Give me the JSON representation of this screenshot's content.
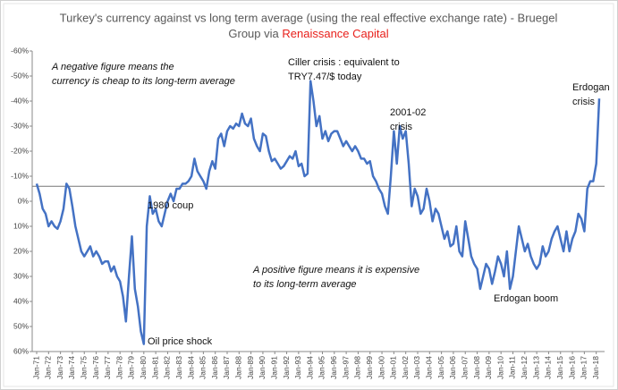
{
  "chart_data": {
    "type": "line",
    "title_lines": [
      "Turkey's currency against vs long term average (using the real effective exchange rate) - Bruegel",
      "Group via"
    ],
    "title_source": "Renaissance Capital",
    "title_source_color": "#e8201b",
    "categories": [
      "Jan-71",
      null,
      null,
      null,
      "Jan-72",
      null,
      null,
      null,
      "Jan-73",
      null,
      null,
      null,
      "Jan-74",
      null,
      null,
      null,
      "Jan-75",
      null,
      null,
      null,
      "Jan-76",
      null,
      null,
      null,
      "Jan-77",
      null,
      null,
      null,
      "Jan-78",
      null,
      null,
      null,
      "Jan-79",
      null,
      null,
      null,
      "Jan-80",
      null,
      null,
      null,
      "Jan-81",
      null,
      null,
      null,
      "Jan-82",
      null,
      null,
      null,
      "Jan-83",
      null,
      null,
      null,
      "Jan-84",
      null,
      null,
      null,
      "Jan-85",
      null,
      null,
      null,
      "Jan-86",
      null,
      null,
      null,
      "Jan-87",
      null,
      null,
      null,
      "Jan-88",
      null,
      null,
      null,
      "Jan-89",
      null,
      null,
      null,
      "Jan-90",
      null,
      null,
      null,
      "Jan-91",
      null,
      null,
      null,
      "Jan-92",
      null,
      null,
      null,
      "Jan-93",
      null,
      null,
      null,
      "Jan-94",
      null,
      null,
      null,
      "Jan-95",
      null,
      null,
      null,
      "Jan-96",
      null,
      null,
      null,
      "Jan-97",
      null,
      null,
      null,
      "Jan-98",
      null,
      null,
      null,
      "Jan-99",
      null,
      null,
      null,
      "Jan-00",
      null,
      null,
      null,
      "Jan-01",
      null,
      null,
      null,
      "Jan-02",
      null,
      null,
      null,
      "Jan-03",
      null,
      null,
      null,
      "Jan-04",
      null,
      null,
      null,
      "Jan-05",
      null,
      null,
      null,
      "Jan-06",
      null,
      null,
      null,
      "Jan-07",
      null,
      null,
      null,
      "Jan-08",
      null,
      null,
      null,
      "Jan-09",
      null,
      null,
      null,
      "Jan-10",
      null,
      null,
      null,
      "Jan-11",
      null,
      null,
      null,
      "Jan-12",
      null,
      null,
      null,
      "Jan-13",
      null,
      null,
      null,
      "Jan-14",
      null,
      null,
      null,
      "Jan-15",
      null,
      null,
      null,
      "Jan-16",
      null,
      null,
      null,
      "Jan-17",
      null,
      null,
      null,
      "Jan-18",
      null
    ],
    "series": [
      {
        "color": "#4472c4",
        "values": [
          -7,
          -3,
          3,
          5,
          10,
          8,
          10,
          11,
          8,
          3,
          -7,
          -5,
          2,
          10,
          15,
          20,
          22,
          20,
          18,
          22,
          20,
          22,
          25,
          24,
          24,
          28,
          26,
          30,
          32,
          38,
          48,
          30,
          14,
          35,
          42,
          52,
          57,
          10,
          -2,
          5,
          3,
          8,
          10,
          5,
          0,
          -3,
          0,
          -5,
          -5,
          -7,
          -7,
          -8,
          -10,
          -17,
          -12,
          -10,
          -8,
          -5,
          -12,
          -16,
          -13,
          -25,
          -27,
          -22,
          -28,
          -30,
          -29,
          -31,
          -30,
          -35,
          -31,
          -30,
          -33,
          -25,
          -22,
          -20,
          -27,
          -26,
          -20,
          -16,
          -17,
          -15,
          -13,
          -14,
          -16,
          -18,
          -17,
          -20,
          -14,
          -15,
          -10,
          -11,
          -48,
          -40,
          -30,
          -34,
          -25,
          -28,
          -24,
          -27,
          -28,
          -28,
          -25,
          -22,
          -24,
          -22,
          -20,
          -22,
          -20,
          -17,
          -17,
          -15,
          -16,
          -10,
          -8,
          -5,
          -3,
          2,
          5,
          -10,
          -28,
          -15,
          -30,
          -25,
          -28,
          -15,
          2,
          -5,
          -2,
          5,
          3,
          -5,
          0,
          8,
          3,
          5,
          10,
          15,
          12,
          18,
          17,
          10,
          20,
          22,
          8,
          15,
          22,
          25,
          27,
          35,
          30,
          25,
          27,
          33,
          28,
          22,
          25,
          30,
          20,
          35,
          30,
          20,
          10,
          15,
          20,
          17,
          22,
          25,
          27,
          25,
          18,
          22,
          20,
          15,
          12,
          10,
          15,
          20,
          12,
          20,
          15,
          12,
          5,
          7,
          12,
          -5,
          -8,
          -8,
          -15,
          -41
        ]
      }
    ],
    "reference_line": -6,
    "ylim": [
      -60,
      60
    ],
    "yticks": [
      {
        "value": -60,
        "label": "-60%"
      },
      {
        "value": -50,
        "label": "-50%"
      },
      {
        "value": -40,
        "label": "-40%"
      },
      {
        "value": -30,
        "label": "-30%"
      },
      {
        "value": -20,
        "label": "-20%"
      },
      {
        "value": -10,
        "label": "-10%"
      },
      {
        "value": 0,
        "label": "0%"
      },
      {
        "value": 10,
        "label": "10%"
      },
      {
        "value": 20,
        "label": "20%"
      },
      {
        "value": 30,
        "label": "30%"
      },
      {
        "value": 40,
        "label": "40%"
      },
      {
        "value": 50,
        "label": "50%"
      },
      {
        "value": 60,
        "label": "60%"
      }
    ],
    "annotations": [
      {
        "lines": [
          "A negative figure means the",
          "currency is cheap to its long-term average"
        ]
      },
      {
        "lines": [
          "Ciller crisis : equivalent to",
          "TRY7.47/$ today"
        ]
      },
      {
        "lines": [
          "2001-02",
          "crisis"
        ]
      },
      {
        "lines": [
          "Erdogan",
          "crisis"
        ]
      },
      {
        "lines": [
          "1980 coup"
        ]
      },
      {
        "lines": [
          "A positive figure means it is expensive",
          "to its long-term average"
        ]
      },
      {
        "lines": [
          "Erdogan boom"
        ]
      },
      {
        "lines": [
          "Oil price shock"
        ]
      }
    ]
  }
}
